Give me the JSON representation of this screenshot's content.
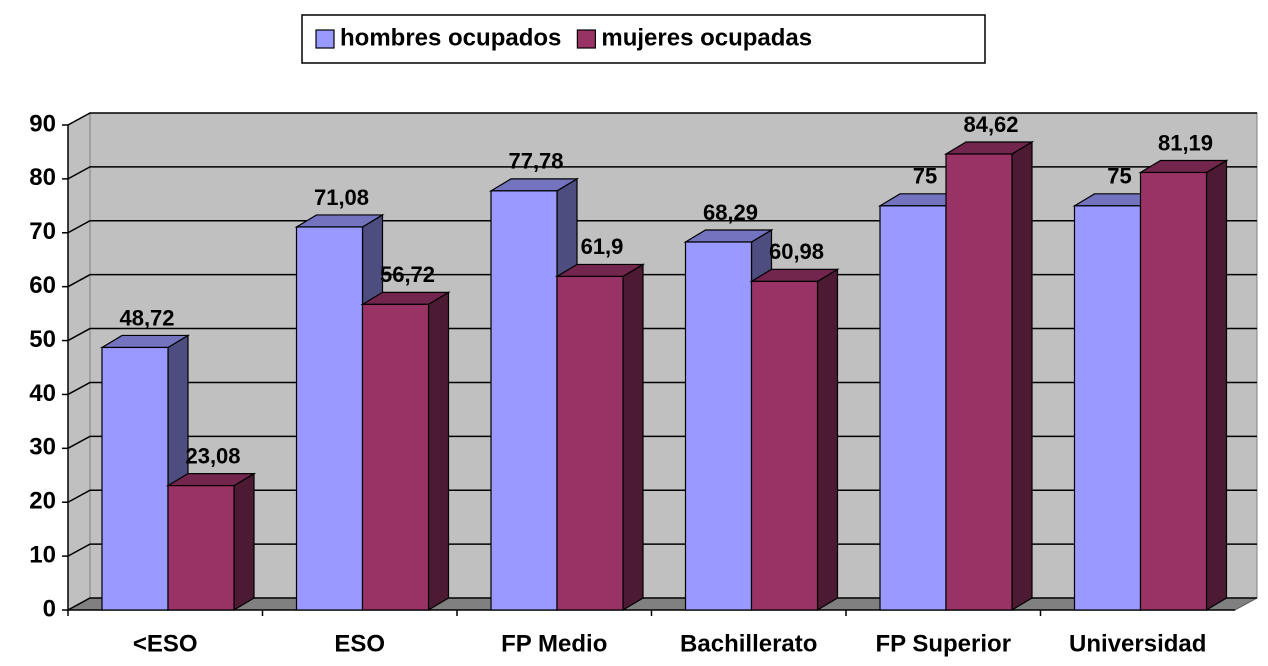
{
  "chart_data": {
    "type": "bar3d",
    "categories": [
      "<ESO",
      "ESO",
      "FP Medio",
      "Bachillerato",
      "FP Superior",
      "Universidad"
    ],
    "series": [
      {
        "name": "hombres ocupados",
        "color": "#9999ff",
        "values": [
          48.72,
          71.08,
          77.78,
          68.29,
          75,
          75
        ],
        "value_labels": [
          "48,72",
          "71,08",
          "77,78",
          "68,29",
          "75",
          "75"
        ]
      },
      {
        "name": "mujeres ocupadas",
        "color": "#993366",
        "values": [
          23.08,
          56.72,
          61.9,
          60.98,
          84.62,
          81.19
        ],
        "value_labels": [
          "23,08",
          "56,72",
          "61,9",
          "60,98",
          "84,62",
          "81,19"
        ]
      }
    ],
    "ylim": [
      0,
      90
    ],
    "yticks": [
      0,
      10,
      20,
      30,
      40,
      50,
      60,
      70,
      80,
      90
    ],
    "grid": true,
    "legend": "top"
  }
}
